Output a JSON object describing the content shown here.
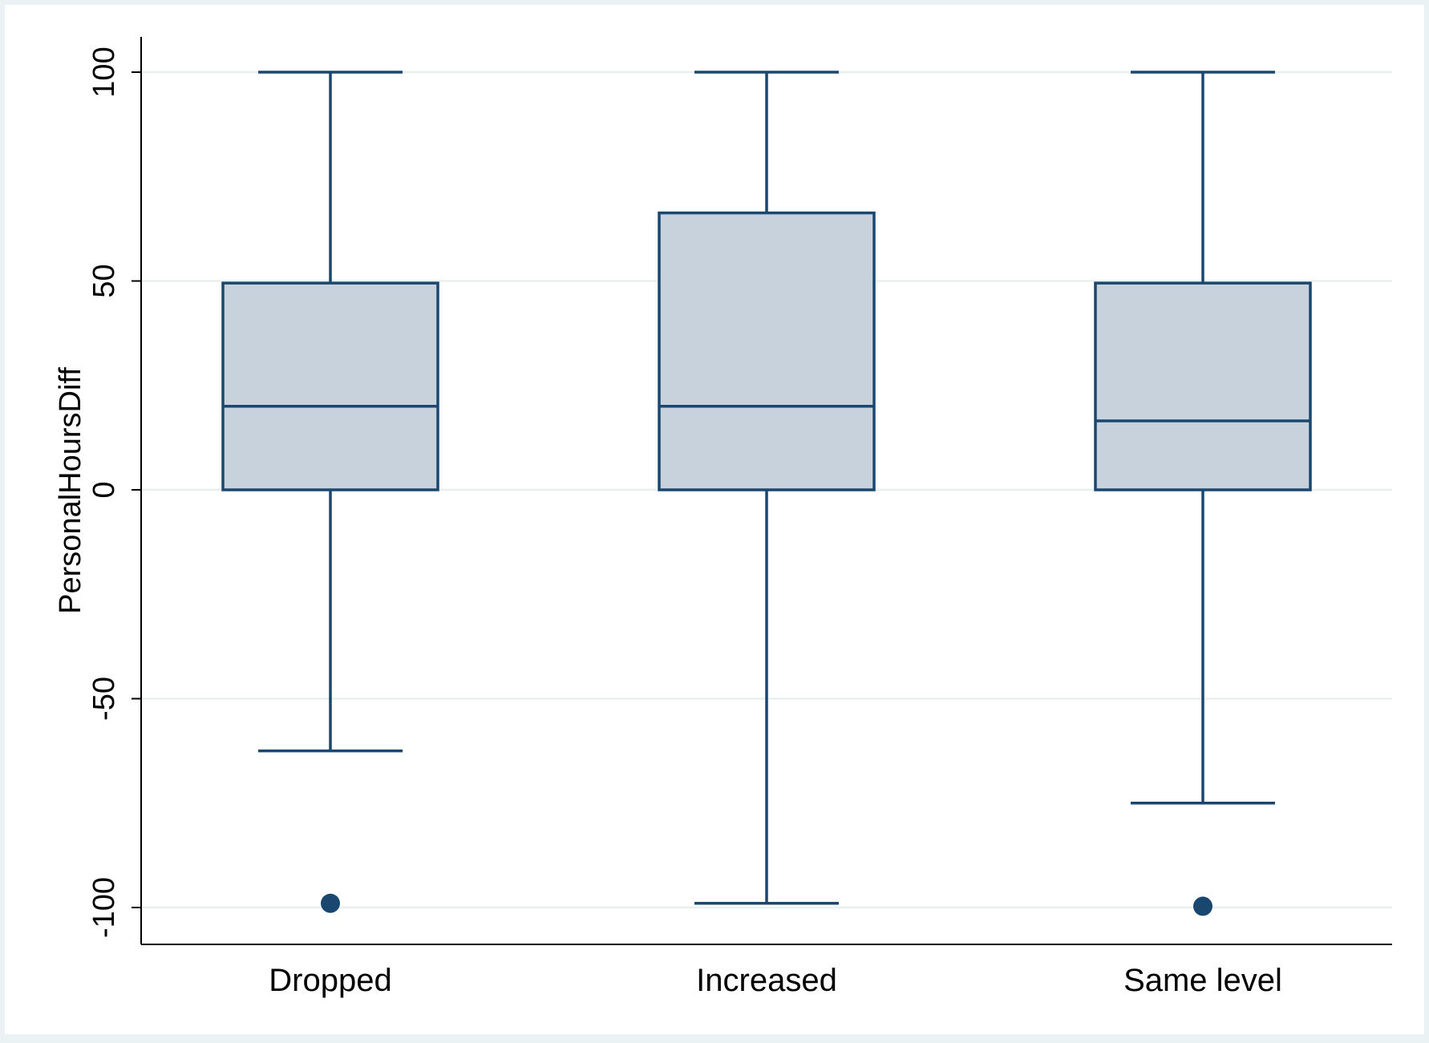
{
  "chart_data": {
    "type": "box",
    "title": "",
    "xlabel": "",
    "ylabel": "PersonalHoursDiff",
    "ylim": [
      -108.8,
      108.0
    ],
    "yticks": [
      100,
      50,
      0,
      -50,
      -100
    ],
    "ytick_labels": [
      "100",
      "50",
      "0",
      "-50",
      "-100"
    ],
    "grid": true,
    "categories": [
      "Dropped",
      "Increased",
      "Same level"
    ],
    "boxes": [
      {
        "category": "Dropped",
        "whisker_low": -62.5,
        "q1": 0,
        "median": 20,
        "q3": 49.5,
        "whisker_high": 100,
        "outliers": [
          -99
        ]
      },
      {
        "category": "Increased",
        "whisker_low": -99,
        "q1": 0,
        "median": 20,
        "q3": 66.3,
        "whisker_high": 100,
        "outliers": []
      },
      {
        "category": "Same level",
        "whisker_low": -75,
        "q1": 0,
        "median": 16.5,
        "q3": 49.5,
        "whisker_high": 100,
        "outliers": [
          -99.7
        ]
      }
    ],
    "colors": {
      "box_fill": "#c8d2dc",
      "box_stroke": "#1a476f",
      "grid": "#e8efef",
      "background": "#ffffff",
      "page": "#eaf2f3"
    }
  }
}
